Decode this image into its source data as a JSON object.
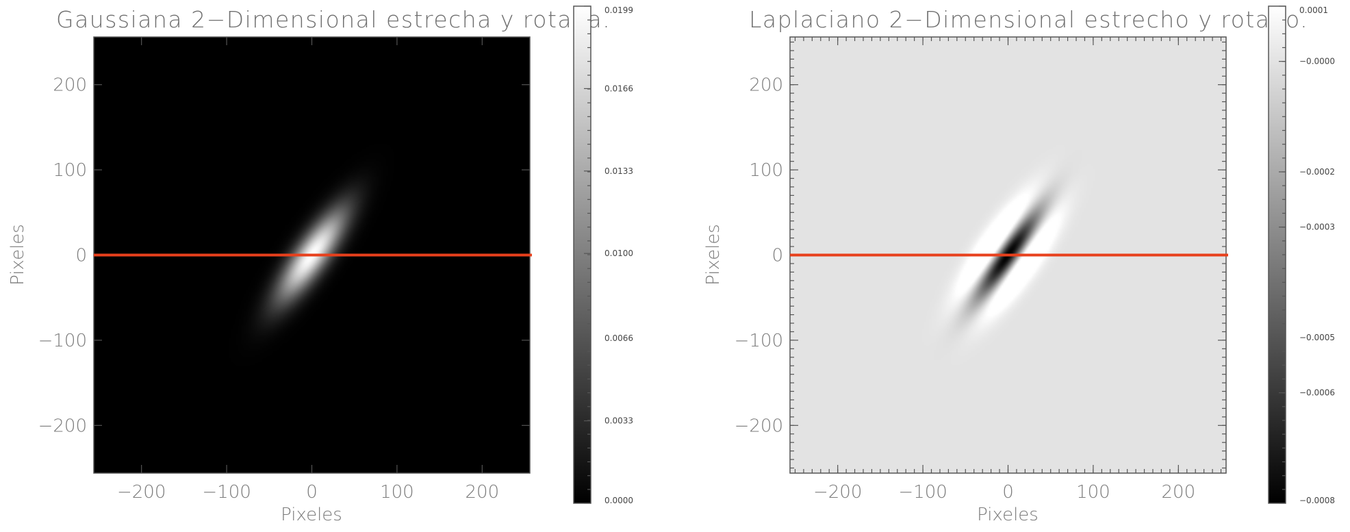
{
  "chart_data": [
    {
      "type": "heatmap",
      "title": "Gaussiana 2−Dimensional estrecha y rotada.",
      "xlabel": "Pixeles",
      "ylabel": "Pixeles",
      "xlim": [
        -256,
        256
      ],
      "ylim": [
        -256,
        256
      ],
      "xticks": [
        -200,
        -100,
        0,
        100,
        200
      ],
      "yticks": [
        -200,
        -100,
        0,
        100,
        200
      ],
      "xtick_labels": [
        "−200",
        "−100",
        "0",
        "100",
        "200"
      ],
      "ytick_labels": [
        "−200",
        "−100",
        "0",
        "100",
        "200"
      ],
      "colormap": "gray",
      "colorbar": {
        "range": [
          0.0,
          0.0199
        ],
        "ticks": [
          0.0,
          0.0033,
          0.0066,
          0.01,
          0.0133,
          0.0166,
          0.0199
        ],
        "tick_labels": [
          "0.0000",
          "0.0033",
          "0.0066",
          "0.0100",
          "0.0133",
          "0.0166",
          "0.0199"
        ]
      },
      "function": {
        "kind": "gaussian",
        "peak": 0.0199,
        "rotation_deg": 55,
        "sigma_major": 45,
        "sigma_minor": 13
      },
      "hline": {
        "y": 0,
        "color": "#e8401c"
      }
    },
    {
      "type": "heatmap",
      "title": "Laplaciano 2−Dimensional estrecho y rotado.",
      "xlabel": "Pixeles",
      "ylabel": "Pixeles",
      "xlim": [
        -256,
        256
      ],
      "ylim": [
        -256,
        256
      ],
      "xticks": [
        -200,
        -100,
        0,
        100,
        200
      ],
      "yticks": [
        -200,
        -100,
        0,
        100,
        200
      ],
      "xtick_labels": [
        "−200",
        "−100",
        "0",
        "100",
        "200"
      ],
      "ytick_labels": [
        "−200",
        "−100",
        "0",
        "100",
        "200"
      ],
      "colormap": "gray",
      "colorbar": {
        "range": [
          -0.0008,
          0.0001
        ],
        "ticks": [
          -0.0008,
          -0.0006,
          -0.0005,
          -0.0003,
          -0.0002,
          -0.0,
          0.0001
        ],
        "tick_labels": [
          "−0.0008",
          "−0.0006",
          "−0.0005",
          "−0.0003",
          "−0.0002",
          "−0.0000",
          "0.0001"
        ]
      },
      "function": {
        "kind": "laplacian_of_gaussian",
        "min": -0.0008,
        "rotation_deg": 55,
        "sigma_major": 45,
        "sigma_minor": 13
      },
      "hline": {
        "y": 0,
        "color": "#e8401c"
      }
    }
  ]
}
